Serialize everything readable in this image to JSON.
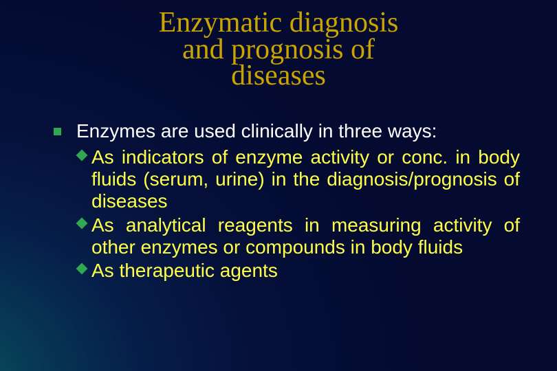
{
  "colors": {
    "title": "#caa400",
    "body_text": "#ffffff",
    "sub_text": "#ffff4a",
    "bullet": "#2fa84f",
    "background_center": "#0a5a60",
    "background_edge": "#040a30"
  },
  "fonts": {
    "title_family": "Times New Roman",
    "title_size_pt": 42,
    "body_size_pt": 28
  },
  "title": {
    "line1": "Enzymatic diagnosis",
    "line2": "and prognosis of",
    "line3": "diseases"
  },
  "body": {
    "lead": "Enzymes are used clinically in three ways:",
    "items": [
      "As indicators of enzyme activity or conc. in body fluids (serum, urine) in the diagnosis/prognosis of diseases",
      "As analytical reagents in measuring activity of other enzymes or compounds in body fluids",
      "As therapeutic agents"
    ]
  }
}
